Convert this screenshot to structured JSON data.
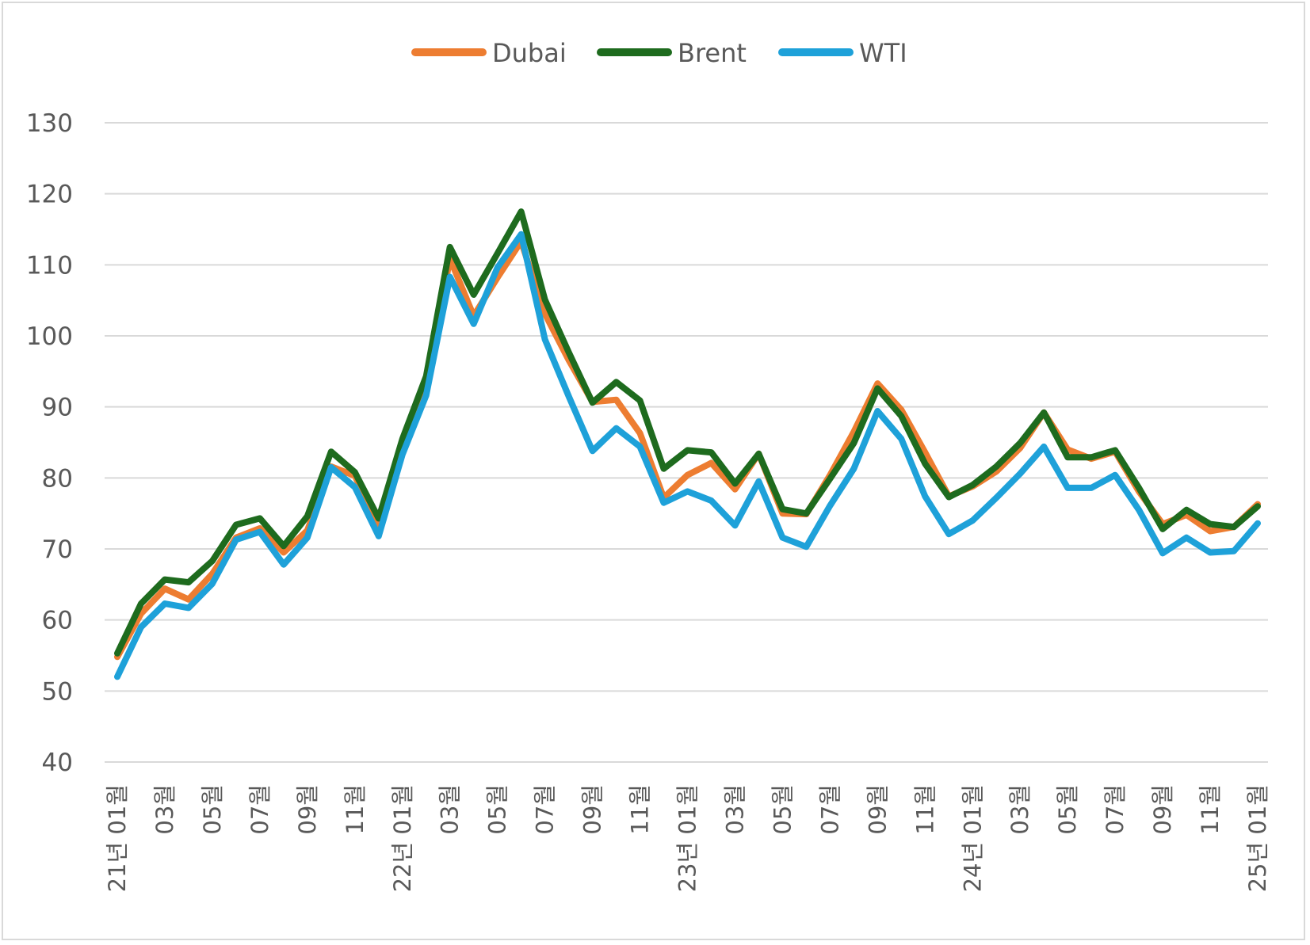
{
  "chart_data": {
    "type": "line",
    "ylim": [
      40,
      130
    ],
    "yticks": [
      40,
      50,
      60,
      70,
      80,
      90,
      100,
      110,
      120,
      130
    ],
    "grid": true,
    "legend_position": "top",
    "x": [
      "21년 01월",
      "21년 02월",
      "21년 03월",
      "21년 04월",
      "21년 05월",
      "21년 06월",
      "21년 07월",
      "21년 08월",
      "21년 09월",
      "21년 10월",
      "21년 11월",
      "21년 12월",
      "22년 01월",
      "22년 02월",
      "22년 03월",
      "22년 04월",
      "22년 05월",
      "22년 06월",
      "22년 07월",
      "22년 08월",
      "22년 09월",
      "22년 10월",
      "22년 11월",
      "22년 12월",
      "23년 01월",
      "23년 02월",
      "23년 03월",
      "23년 04월",
      "23년 05월",
      "23년 06월",
      "23년 07월",
      "23년 08월",
      "23년 09월",
      "23년 10월",
      "23년 11월",
      "23년 12월",
      "24년 01월",
      "24년 02월",
      "24년 03월",
      "24년 04월",
      "24년 05월",
      "24년 06월",
      "24년 07월",
      "24년 08월",
      "24년 09월",
      "24년 10월",
      "24년 11월",
      "24년 12월",
      "25년 01월"
    ],
    "tick_labels": [
      {
        "index": 0,
        "text": "21년 01월"
      },
      {
        "index": 2,
        "text": "03월"
      },
      {
        "index": 4,
        "text": "05월"
      },
      {
        "index": 6,
        "text": "07월"
      },
      {
        "index": 8,
        "text": "09월"
      },
      {
        "index": 10,
        "text": "11월"
      },
      {
        "index": 12,
        "text": "22년 01월"
      },
      {
        "index": 14,
        "text": "03월"
      },
      {
        "index": 16,
        "text": "05월"
      },
      {
        "index": 18,
        "text": "07월"
      },
      {
        "index": 20,
        "text": "09월"
      },
      {
        "index": 22,
        "text": "11월"
      },
      {
        "index": 24,
        "text": "23년 01월"
      },
      {
        "index": 26,
        "text": "03월"
      },
      {
        "index": 28,
        "text": "05월"
      },
      {
        "index": 30,
        "text": "07월"
      },
      {
        "index": 32,
        "text": "09월"
      },
      {
        "index": 34,
        "text": "11월"
      },
      {
        "index": 36,
        "text": "24년 01월"
      },
      {
        "index": 38,
        "text": "03월"
      },
      {
        "index": 40,
        "text": "05월"
      },
      {
        "index": 42,
        "text": "07월"
      },
      {
        "index": 44,
        "text": "09월"
      },
      {
        "index": 46,
        "text": "11월"
      },
      {
        "index": 48,
        "text": "25년 01월"
      }
    ],
    "series": [
      {
        "name": "Dubai",
        "color": "#ed7d31",
        "values": [
          54.8,
          60.9,
          64.4,
          62.9,
          66.5,
          71.6,
          72.9,
          69.5,
          72.6,
          81.6,
          80.3,
          73.2,
          83.5,
          92.4,
          110.9,
          102.8,
          108.2,
          113.3,
          103.1,
          96.6,
          90.7,
          91.0,
          86.3,
          77.2,
          80.4,
          82.1,
          78.4,
          83.4,
          75.0,
          74.9,
          80.4,
          86.5,
          93.3,
          89.6,
          83.6,
          77.4,
          78.8,
          80.9,
          84.2,
          89.2,
          84.0,
          82.7,
          83.7,
          78.1,
          73.5,
          74.8,
          72.5,
          73.1,
          76.3
        ]
      },
      {
        "name": "Brent",
        "color": "#1e6b1e",
        "values": [
          55.3,
          62.3,
          65.7,
          65.3,
          68.3,
          73.4,
          74.3,
          70.4,
          74.6,
          83.7,
          80.8,
          74.3,
          85.5,
          94.3,
          112.5,
          105.8,
          111.6,
          117.5,
          105.1,
          97.7,
          90.6,
          93.5,
          90.9,
          81.3,
          83.9,
          83.6,
          79.2,
          83.4,
          75.6,
          75.0,
          79.9,
          84.9,
          92.6,
          88.7,
          82.0,
          77.3,
          79.0,
          81.6,
          84.9,
          89.2,
          82.9,
          82.9,
          83.9,
          78.6,
          72.8,
          75.5,
          73.5,
          73.1,
          76.0
        ]
      },
      {
        "name": "WTI",
        "color": "#1ea1d9",
        "values": [
          52.0,
          59.0,
          62.3,
          61.7,
          65.1,
          71.3,
          72.4,
          67.8,
          71.6,
          81.5,
          78.7,
          71.8,
          83.3,
          91.6,
          108.3,
          101.7,
          109.6,
          114.3,
          99.5,
          91.5,
          83.8,
          87.0,
          84.4,
          76.5,
          78.1,
          76.8,
          73.3,
          79.5,
          71.6,
          70.3,
          76.1,
          81.3,
          89.4,
          85.5,
          77.4,
          72.1,
          74.0,
          77.2,
          80.6,
          84.4,
          78.6,
          78.6,
          80.4,
          75.5,
          69.4,
          71.6,
          69.5,
          69.7,
          73.6
        ]
      }
    ]
  }
}
